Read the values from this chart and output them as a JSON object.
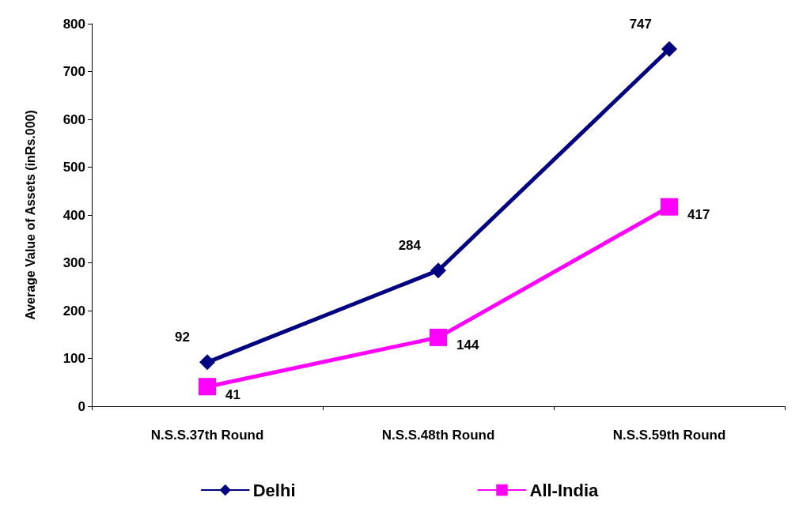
{
  "chart_data": {
    "type": "line",
    "ylabel": "Average Value of Assets (inRs.000)",
    "categories": [
      "N.S.S.37th Round",
      "N.S.S.48th Round",
      "N.S.S.59th Round"
    ],
    "series": [
      {
        "name": "Delhi",
        "color": "#000080",
        "values": [
          92,
          284,
          747
        ],
        "marker": "diamond"
      },
      {
        "name": "All-India",
        "color": "#ff00ff",
        "values": [
          41,
          144,
          417
        ],
        "marker": "square"
      }
    ],
    "ylim": [
      0,
      800
    ],
    "yticks": [
      0,
      100,
      200,
      300,
      400,
      500,
      600,
      700,
      800
    ],
    "grid": false,
    "legend": "bottom",
    "data_labels": true,
    "line_style": "solid"
  }
}
